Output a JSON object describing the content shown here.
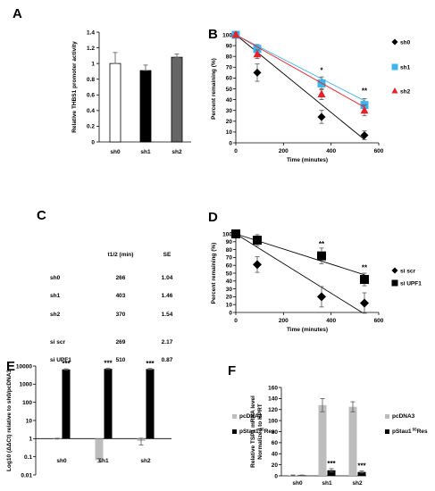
{
  "chart_data": [
    {
      "panel": "A",
      "type": "bar",
      "ylabel": "Relative THBS1 promoter activity",
      "ylim": [
        0,
        1.4
      ],
      "yticks": [
        "0",
        "0.2",
        "0.4",
        "0.6",
        "0.8",
        "1",
        "1.2",
        "1.4"
      ],
      "categories": [
        "sh0",
        "sh1",
        "sh2"
      ],
      "values": [
        1.0,
        0.91,
        1.08
      ],
      "errors": [
        0.14,
        0.07,
        0.04
      ],
      "colors": [
        "#ffffff",
        "#000000",
        "#666666"
      ]
    },
    {
      "panel": "B",
      "type": "scatter",
      "xlabel": "Time (minutes)",
      "ylabel": "Percent remaining (%)",
      "xlim": [
        0,
        600
      ],
      "ylim": [
        0,
        100
      ],
      "xticks": [
        "0",
        "200",
        "400",
        "600"
      ],
      "yticks": [
        "0",
        "10",
        "20",
        "30",
        "40",
        "50",
        "60",
        "70",
        "80",
        "90",
        "100"
      ],
      "legend_position": "right",
      "series": [
        {
          "name": "sh0",
          "marker": "diamond",
          "color": "#000000",
          "x": [
            0,
            90,
            360,
            540
          ],
          "y": [
            100,
            65,
            24,
            7
          ],
          "err": [
            2,
            8,
            6,
            4
          ],
          "fit": [
            [
              0,
              100
            ],
            [
              540,
              3
            ]
          ]
        },
        {
          "name": "sh1",
          "marker": "square",
          "color": "#3fb4ec",
          "x": [
            0,
            90,
            360,
            540
          ],
          "y": [
            100,
            87,
            55,
            35
          ],
          "err": [
            2,
            4,
            6,
            6
          ],
          "fit": [
            [
              0,
              100
            ],
            [
              540,
              39
            ]
          ]
        },
        {
          "name": "sh2",
          "marker": "triangle",
          "color": "#e8202a",
          "x": [
            0,
            90,
            360,
            540
          ],
          "y": [
            100,
            82,
            45,
            30
          ],
          "err": [
            2,
            4,
            5,
            5
          ],
          "fit": [
            [
              0,
              100
            ],
            [
              540,
              33
            ]
          ]
        }
      ],
      "annotations": [
        {
          "x": 360,
          "y": 65,
          "text": "*"
        },
        {
          "x": 540,
          "y": 46,
          "text": "**"
        }
      ]
    },
    {
      "panel": "C",
      "type": "table",
      "columns": [
        "",
        "t1/2 (min)",
        "SE"
      ],
      "rows": [
        [
          "sh0",
          "266",
          "1.04"
        ],
        [
          "sh1",
          "403",
          "1.46"
        ],
        [
          "sh2",
          "370",
          "1.54"
        ],
        [
          "si scr",
          "269",
          "2.17"
        ],
        [
          "si UPF1",
          "510",
          "0.87"
        ]
      ]
    },
    {
      "panel": "D",
      "type": "scatter",
      "xlabel": "Time (minutes)",
      "ylabel": "Percent remaining (%)",
      "xlim": [
        0,
        600
      ],
      "ylim": [
        0,
        100
      ],
      "xticks": [
        "0",
        "200",
        "400",
        "600"
      ],
      "yticks": [
        "0",
        "10",
        "20",
        "30",
        "40",
        "50",
        "60",
        "70",
        "80",
        "90",
        "100"
      ],
      "legend_position": "right",
      "series": [
        {
          "name": "si scr",
          "marker": "diamond",
          "color": "#000000",
          "x": [
            0,
            90,
            360,
            540
          ],
          "y": [
            100,
            61,
            20,
            12
          ],
          "err": [
            2,
            10,
            13,
            13
          ],
          "fit": [
            [
              0,
              100
            ],
            [
              530,
              0
            ]
          ]
        },
        {
          "name": "si UPF1",
          "marker": "square",
          "color": "#000000",
          "x": [
            0,
            90,
            360,
            540
          ],
          "y": [
            100,
            92,
            72,
            42
          ],
          "err": [
            2,
            7,
            10,
            8
          ],
          "fit": [
            [
              0,
              100
            ],
            [
              540,
              48
            ]
          ]
        }
      ],
      "annotations": [
        {
          "x": 360,
          "y": 84,
          "text": "**"
        },
        {
          "x": 540,
          "y": 54,
          "text": "**"
        }
      ]
    },
    {
      "panel": "E",
      "type": "bar",
      "scale": "log",
      "ylabel": "Log10 (ΔΔCt) relative to sh0/pcDNA3",
      "ylim": [
        0.01,
        10000
      ],
      "yticks": [
        "0.01",
        "0.1",
        "1",
        "10",
        "100",
        "1000",
        "10000"
      ],
      "categories": [
        "sh0",
        "sh1",
        "sh2"
      ],
      "series": [
        {
          "name": "pcDNA3",
          "color": "#bdbdbd",
          "values": [
            1.0,
            0.065,
            0.75
          ],
          "errors": [
            0.05,
            0.015,
            0.3
          ]
        },
        {
          "name": "pStau1 55Res",
          "color": "#000000",
          "values": [
            6500,
            7000,
            6800
          ],
          "errors": [
            500,
            500,
            500
          ]
        }
      ],
      "annotations": [
        {
          "category": "sh0",
          "text": "***"
        },
        {
          "category": "sh1",
          "text": "***"
        },
        {
          "category": "sh2",
          "text": "***"
        }
      ]
    },
    {
      "panel": "F",
      "type": "bar",
      "ylabel": "Relative TSP1 mRNA level Normalized to HPRT",
      "ylim": [
        0,
        160
      ],
      "yticks": [
        "0",
        "20",
        "40",
        "60",
        "80",
        "100",
        "120",
        "140",
        "160"
      ],
      "categories": [
        "sh0",
        "sh1",
        "sh2"
      ],
      "series": [
        {
          "name": "pcDNA3",
          "color": "#bdbdbd",
          "values": [
            1,
            128,
            125
          ],
          "errors": [
            0.5,
            12,
            9
          ]
        },
        {
          "name": "pStau1 55Res",
          "color": "#000000",
          "values": [
            1,
            10,
            7
          ],
          "errors": [
            0.5,
            3,
            2
          ]
        }
      ],
      "annotations": [
        {
          "category": "sh1",
          "text": "***"
        },
        {
          "category": "sh2",
          "text": "***"
        }
      ]
    }
  ],
  "panel_letters": [
    "A",
    "B",
    "C",
    "D",
    "E",
    "F"
  ]
}
